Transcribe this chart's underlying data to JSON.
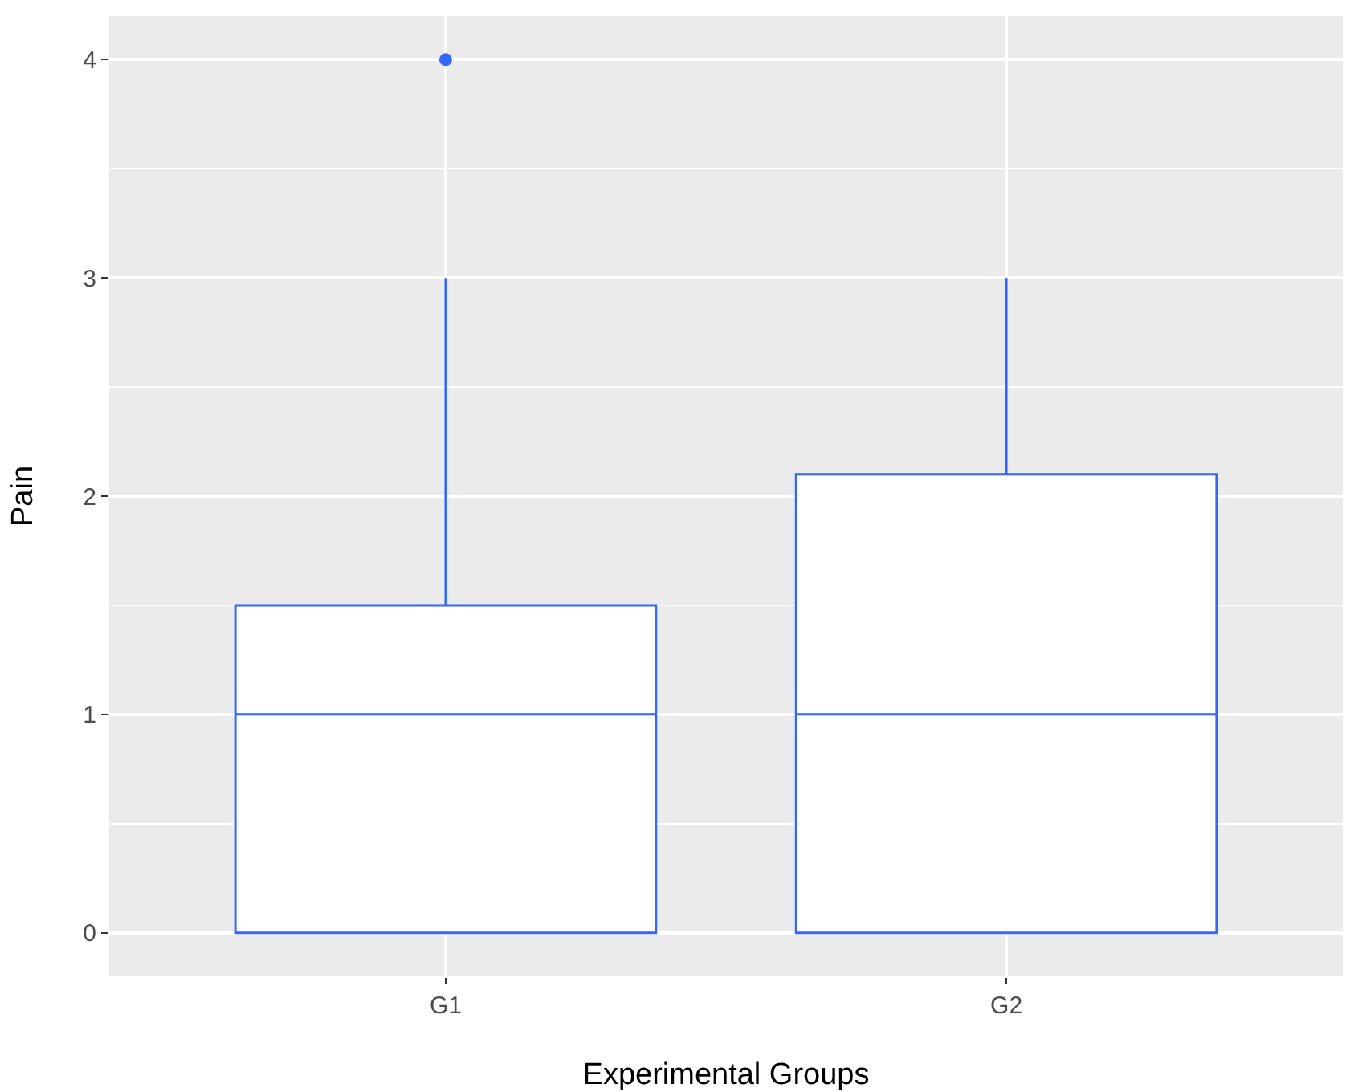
{
  "chart_data": {
    "type": "box",
    "xlabel": "Experimental Groups",
    "ylabel": "Pain",
    "categories": [
      "G1",
      "G2"
    ],
    "series": [
      {
        "color": "#3366ff",
        "boxes": [
          {
            "low": 0,
            "q1": 0,
            "median": 1,
            "q3": 1.5,
            "high": 3,
            "outliers": [
              4
            ]
          },
          {
            "low": 0,
            "q1": 0,
            "median": 1,
            "q3": 2.1,
            "high": 3
          }
        ]
      }
    ],
    "ylim": [
      -0.2,
      4.2
    ],
    "yticks": [
      0,
      1,
      2,
      3,
      4
    ],
    "grid": true
  }
}
